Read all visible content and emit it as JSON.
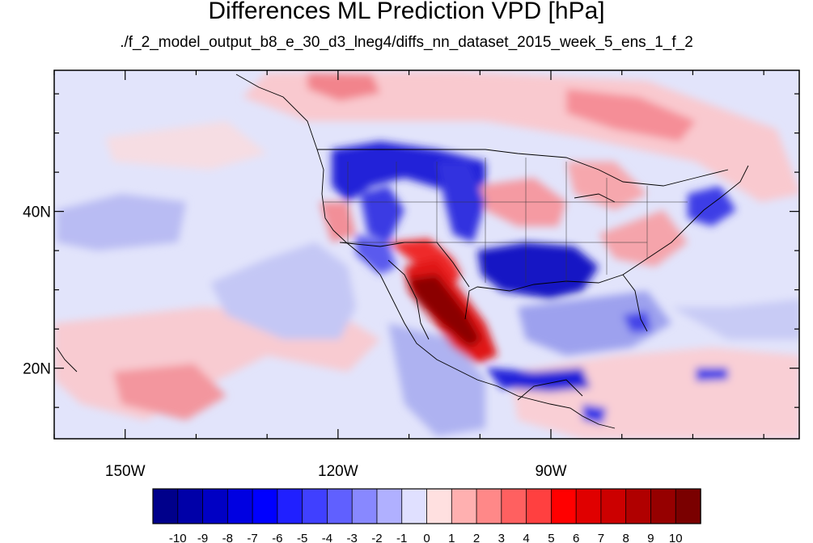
{
  "title": "Differences ML Prediction VPD [hPa]",
  "subtitle": "./f_2_model_output_b8_e_30_d3_lneg4/diffs_nn_dataset_2015_week_5_ens_1_f_2",
  "map": {
    "lon_range": [
      -160,
      -55
    ],
    "lat_range": [
      11,
      58
    ],
    "lon_ticks": [
      {
        "value": -150,
        "label": "150W"
      },
      {
        "value": -120,
        "label": "120W"
      },
      {
        "value": -90,
        "label": "90W"
      }
    ],
    "lat_ticks": [
      {
        "value": 40,
        "label": "40N"
      },
      {
        "value": 20,
        "label": "20N"
      }
    ],
    "minor_lon_step": 10,
    "minor_lat_step": 5
  },
  "colorbar": {
    "colors": [
      "#00008b",
      "#0000a8",
      "#0000c4",
      "#0000e1",
      "#0000ff",
      "#2020ff",
      "#4040ff",
      "#6060ff",
      "#8888ff",
      "#b0b0ff",
      "#e0e0ff",
      "#ffe0e0",
      "#ffb0b0",
      "#ff8888",
      "#ff6060",
      "#ff4040",
      "#ff0000",
      "#e00000",
      "#cc0000",
      "#b00000",
      "#960000",
      "#7a0000"
    ],
    "labels": [
      "-10",
      "-9",
      "-8",
      "-7",
      "-6",
      "-5",
      "-4",
      "-3",
      "-2",
      "-1",
      "0",
      "1",
      "2",
      "3",
      "4",
      "5",
      "6",
      "7",
      "8",
      "9",
      "10"
    ]
  }
}
